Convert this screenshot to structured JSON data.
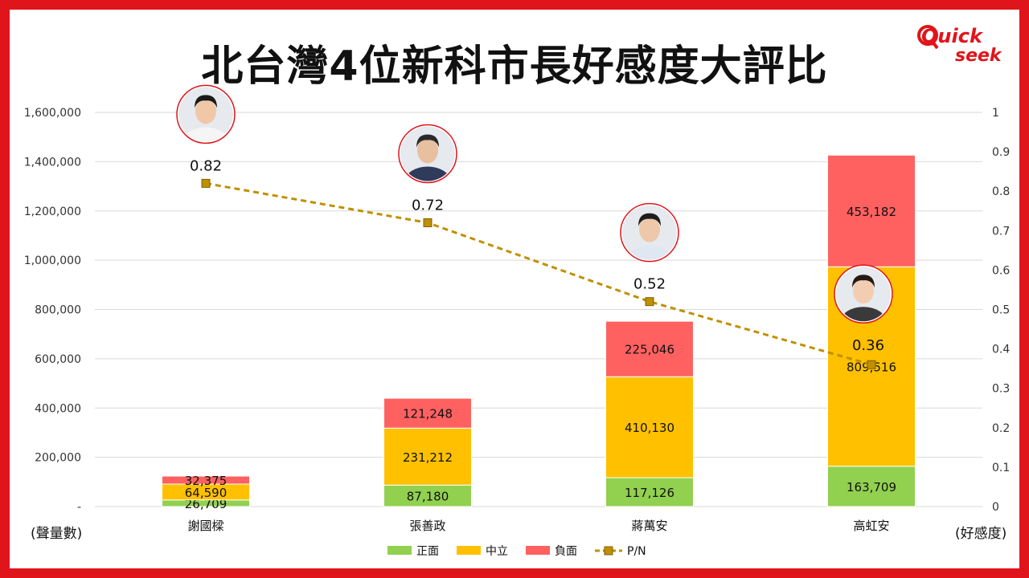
{
  "title": "北台灣4位新科市長好感度大評比",
  "logo": {
    "line1": "Quick",
    "line2": "seek"
  },
  "chart_data": {
    "type": "bar",
    "stacked": true,
    "categories": [
      "謝國樑",
      "張善政",
      "蔣萬安",
      "高虹安"
    ],
    "series": [
      {
        "name": "正面",
        "color": "#92d050",
        "values": [
          26709,
          87180,
          117126,
          163709
        ]
      },
      {
        "name": "中立",
        "color": "#ffc000",
        "values": [
          64590,
          231212,
          410130,
          809516
        ]
      },
      {
        "name": "負面",
        "color": "#ff6161",
        "values": [
          32375,
          121248,
          225046,
          453182
        ]
      }
    ],
    "value_labels": [
      [
        "26,709",
        "87,180",
        "117,126",
        "163,709"
      ],
      [
        "64,590",
        "231,212",
        "410,130",
        "809,516"
      ],
      [
        "32,375",
        "121,248",
        "225,046",
        "453,182"
      ]
    ],
    "line_series": {
      "name": "P/N",
      "color": "#bf9000",
      "values": [
        0.82,
        0.72,
        0.52,
        0.36
      ],
      "labels": [
        "0.82",
        "0.72",
        "0.52",
        "0.36"
      ]
    },
    "ylabel_left": "(聲量數)",
    "ylabel_right": "(好感度)",
    "ylim_left": [
      0,
      1600000
    ],
    "ylim_right": [
      0,
      1
    ],
    "yticks_left": [
      "-",
      "200,000",
      "400,000",
      "600,000",
      "800,000",
      "1,000,000",
      "1,200,000",
      "1,400,000",
      "1,600,000"
    ],
    "yticks_right": [
      "0",
      "0.1",
      "0.2",
      "0.3",
      "0.4",
      "0.5",
      "0.6",
      "0.7",
      "0.8",
      "0.9",
      "1"
    ],
    "grid": true,
    "legend_position": "bottom"
  }
}
